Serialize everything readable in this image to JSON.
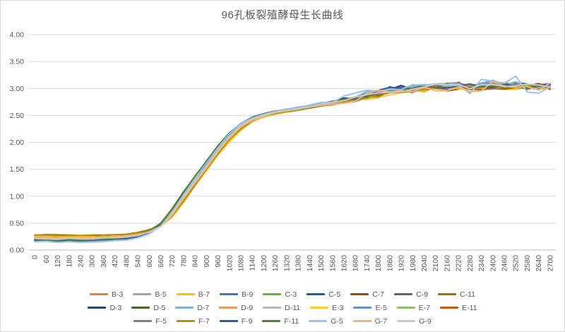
{
  "chart_data": {
    "type": "line",
    "title": "96孔板裂殖酵母生长曲线",
    "xlabel": "",
    "ylabel": "",
    "ylim": [
      0,
      4
    ],
    "grid": true,
    "legend_position": "bottom",
    "legend_rows": [
      9,
      9,
      7
    ],
    "y_ticks": [
      "0.00",
      "0.50",
      "1.00",
      "1.50",
      "2.00",
      "2.50",
      "3.00",
      "3.50",
      "4.00"
    ],
    "x": [
      0,
      60,
      120,
      180,
      240,
      300,
      360,
      420,
      480,
      540,
      600,
      660,
      720,
      780,
      840,
      900,
      960,
      1020,
      1080,
      1140,
      1200,
      1260,
      1320,
      1380,
      1440,
      1500,
      1560,
      1620,
      1680,
      1740,
      1800,
      1860,
      1920,
      1980,
      2040,
      2100,
      2160,
      2220,
      2280,
      2340,
      2400,
      2460,
      2520,
      2580,
      2640,
      2700
    ],
    "base_values": [
      0.21,
      0.21,
      0.2,
      0.2,
      0.2,
      0.2,
      0.21,
      0.22,
      0.24,
      0.27,
      0.33,
      0.45,
      0.68,
      1.0,
      1.3,
      1.58,
      1.87,
      2.13,
      2.32,
      2.44,
      2.51,
      2.56,
      2.6,
      2.63,
      2.67,
      2.71,
      2.74,
      2.78,
      2.82,
      2.86,
      2.92,
      2.98,
      3.0,
      2.99,
      3.01,
      3.04,
      3.02,
      3.08,
      3.02,
      3.04,
      3.06,
      3.05,
      3.07,
      3.04,
      3.05,
      3.04
    ],
    "series": [
      {
        "name": "B-3",
        "color": "#ED7D31",
        "early_offset": 0.025,
        "lag": 8,
        "noise": 0.06,
        "seed": 3
      },
      {
        "name": "B-5",
        "color": "#A5A5A5",
        "early_offset": 0.015,
        "lag": 2,
        "noise": 0.055,
        "seed": 7
      },
      {
        "name": "B-7",
        "color": "#FFC000",
        "early_offset": 0.065,
        "lag": 28,
        "noise": 0.06,
        "seed": 11
      },
      {
        "name": "B-9",
        "color": "#4472C4",
        "early_offset": -0.02,
        "lag": -4,
        "noise": 0.055,
        "seed": 13
      },
      {
        "name": "C-3",
        "color": "#70AD47",
        "early_offset": -0.005,
        "lag": -14,
        "noise": 0.06,
        "seed": 17
      },
      {
        "name": "C-5",
        "color": "#255E91",
        "early_offset": -0.025,
        "lag": -6,
        "noise": 0.05,
        "seed": 19
      },
      {
        "name": "C-7",
        "color": "#9E480E",
        "early_offset": 0.02,
        "lag": 6,
        "noise": 0.065,
        "seed": 23
      },
      {
        "name": "C-9",
        "color": "#636363",
        "early_offset": 0.01,
        "lag": 0,
        "noise": 0.05,
        "seed": 29
      },
      {
        "name": "C-11",
        "color": "#997300",
        "early_offset": 0.07,
        "lag": 24,
        "noise": 0.055,
        "seed": 31
      },
      {
        "name": "D-3",
        "color": "#264478",
        "early_offset": -0.03,
        "lag": -8,
        "noise": 0.055,
        "seed": 37
      },
      {
        "name": "D-5",
        "color": "#43682B",
        "early_offset": -0.01,
        "lag": -16,
        "noise": 0.055,
        "seed": 41
      },
      {
        "name": "D-7",
        "color": "#7CAFDD",
        "early_offset": -0.045,
        "lag": -12,
        "noise": 0.085,
        "seed": 43
      },
      {
        "name": "D-9",
        "color": "#F1975A",
        "early_offset": 0.03,
        "lag": 10,
        "noise": 0.065,
        "seed": 47
      },
      {
        "name": "D-11",
        "color": "#B7B7B7",
        "early_offset": 0.012,
        "lag": 2,
        "noise": 0.05,
        "seed": 53
      },
      {
        "name": "E-3",
        "color": "#FFCD33",
        "early_offset": 0.055,
        "lag": 26,
        "noise": 0.06,
        "seed": 59
      },
      {
        "name": "E-5",
        "color": "#698ED0",
        "early_offset": -0.022,
        "lag": -4,
        "noise": 0.055,
        "seed": 61
      },
      {
        "name": "E-7",
        "color": "#8CC168",
        "early_offset": -0.008,
        "lag": -12,
        "noise": 0.06,
        "seed": 67
      },
      {
        "name": "E-11",
        "color": "#C55A11",
        "early_offset": 0.022,
        "lag": 8,
        "noise": 0.06,
        "seed": 71
      },
      {
        "name": "F-5",
        "color": "#7F7F7F",
        "early_offset": 0.008,
        "lag": 0,
        "noise": 0.05,
        "seed": 73
      },
      {
        "name": "F-7",
        "color": "#BF8F00",
        "early_offset": 0.06,
        "lag": 22,
        "noise": 0.055,
        "seed": 79
      },
      {
        "name": "F-9",
        "color": "#335AA1",
        "early_offset": -0.028,
        "lag": -6,
        "noise": 0.055,
        "seed": 83
      },
      {
        "name": "F-11",
        "color": "#538135",
        "early_offset": -0.012,
        "lag": -15,
        "noise": 0.06,
        "seed": 89
      },
      {
        "name": "G-5",
        "color": "#9DC3E6",
        "early_offset": -0.05,
        "lag": -10,
        "noise": 0.15,
        "seed": 97
      },
      {
        "name": "G-7",
        "color": "#F4B183",
        "early_offset": 0.028,
        "lag": 12,
        "noise": 0.1,
        "seed": 101
      },
      {
        "name": "G-9",
        "color": "#C9C9C9",
        "early_offset": 0.01,
        "lag": 4,
        "noise": 0.055,
        "seed": 103
      }
    ],
    "colors": {
      "grid": "#D9D9D9",
      "axis_line": "#BFBFBF",
      "text": "#595959",
      "background": "#FFFFFF"
    }
  }
}
